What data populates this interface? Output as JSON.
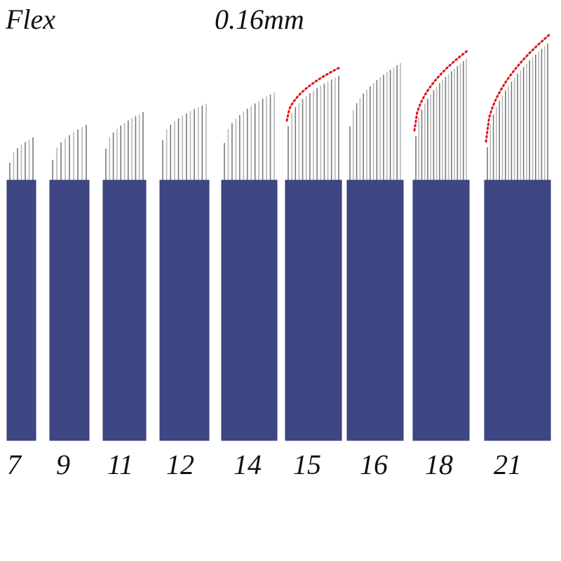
{
  "header": {
    "type_label": "Flex",
    "size_label": "0.16mm"
  },
  "colors": {
    "blade_body": "#3f4684",
    "blade_edge": "#333a78",
    "needle": "#7a7a7a",
    "needle_light": "#b8b8b8",
    "curve_marker": "#e0141a"
  },
  "blades": [
    {
      "label": "7",
      "pins": 7,
      "curve_marked": false
    },
    {
      "label": "9",
      "pins": 9,
      "curve_marked": false
    },
    {
      "label": "11",
      "pins": 11,
      "curve_marked": false
    },
    {
      "label": "12",
      "pins": 12,
      "curve_marked": false
    },
    {
      "label": "14",
      "pins": 14,
      "curve_marked": false
    },
    {
      "label": "15",
      "pins": 15,
      "curve_marked": true
    },
    {
      "label": "16",
      "pins": 16,
      "curve_marked": false
    },
    {
      "label": "18",
      "pins": 18,
      "curve_marked": true
    },
    {
      "label": "21",
      "pins": 21,
      "curve_marked": true
    }
  ]
}
